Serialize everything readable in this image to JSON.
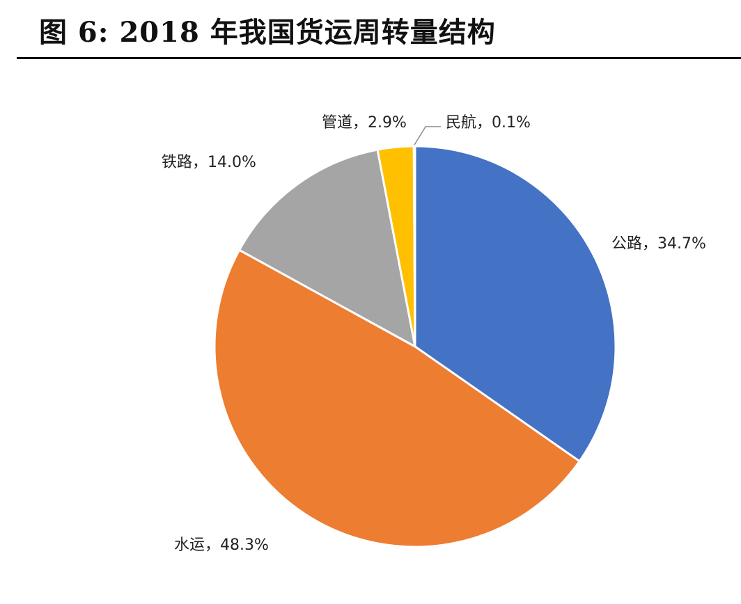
{
  "figure": {
    "title": "图 6:  2018 年我国货运周转量结构"
  },
  "chart_data": {
    "type": "pie",
    "title": "",
    "start_angle_deg": 0,
    "direction": "clockwise",
    "slices": [
      {
        "name": "公路",
        "value": 34.7,
        "label": "公路，34.7%",
        "color": "#4472C4"
      },
      {
        "name": "水运",
        "value": 48.3,
        "label": "水运，48.3%",
        "color": "#ED7D31"
      },
      {
        "name": "铁路",
        "value": 14.0,
        "label": "铁路，14.0%",
        "color": "#A5A5A5"
      },
      {
        "name": "管道",
        "value": 2.9,
        "label": "管道，2.9%",
        "color": "#FFC000"
      },
      {
        "name": "民航",
        "value": 0.1,
        "label": "民航，0.1%",
        "color": "#5B9BD5"
      }
    ]
  }
}
